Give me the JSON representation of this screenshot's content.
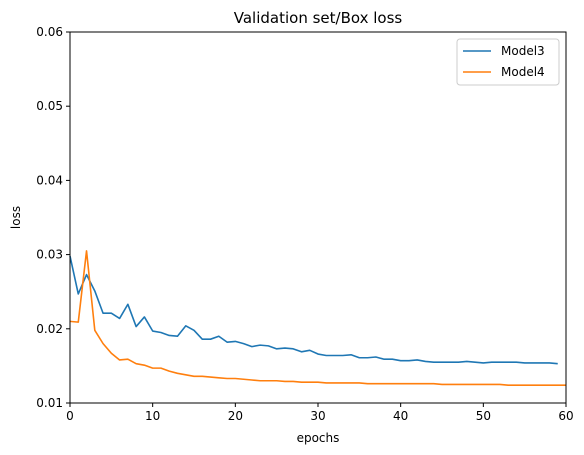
{
  "chart_data": {
    "type": "line",
    "title": "Validation set/Box loss",
    "xlabel": "epochs",
    "ylabel": "loss",
    "xlim": [
      0,
      60
    ],
    "ylim": [
      0.01,
      0.06
    ],
    "x_ticks": [
      0,
      10,
      20,
      30,
      40,
      50,
      60
    ],
    "y_ticks": [
      0.01,
      0.02,
      0.03,
      0.04,
      0.05,
      0.06
    ],
    "x_tick_labels": [
      "0",
      "10",
      "20",
      "30",
      "40",
      "50",
      "60"
    ],
    "y_tick_labels": [
      "0.01",
      "0.02",
      "0.03",
      "0.04",
      "0.05",
      "0.06"
    ],
    "grid": false,
    "legend_position": "top-right",
    "series": [
      {
        "name": "Model3",
        "color": "#1f77b4",
        "x": [
          0,
          1,
          2,
          3,
          4,
          5,
          6,
          7,
          8,
          9,
          10,
          11,
          12,
          13,
          14,
          15,
          16,
          17,
          18,
          19,
          20,
          21,
          22,
          23,
          24,
          25,
          26,
          27,
          28,
          29,
          30,
          31,
          32,
          33,
          34,
          35,
          36,
          37,
          38,
          39,
          40,
          41,
          42,
          43,
          44,
          45,
          46,
          47,
          48,
          49,
          50,
          51,
          52,
          53,
          54,
          55,
          56,
          57,
          58,
          59
        ],
        "values": [
          0.0298,
          0.0247,
          0.0273,
          0.0251,
          0.0221,
          0.0221,
          0.0214,
          0.0233,
          0.0203,
          0.0216,
          0.0197,
          0.0195,
          0.0191,
          0.019,
          0.0204,
          0.0198,
          0.0186,
          0.0186,
          0.019,
          0.0182,
          0.0183,
          0.018,
          0.0176,
          0.0178,
          0.0177,
          0.0173,
          0.0174,
          0.0173,
          0.0169,
          0.0171,
          0.0166,
          0.0164,
          0.0164,
          0.0164,
          0.0165,
          0.0161,
          0.0161,
          0.0162,
          0.0159,
          0.0159,
          0.0157,
          0.0157,
          0.0158,
          0.0156,
          0.0155,
          0.0155,
          0.0155,
          0.0155,
          0.0156,
          0.0155,
          0.0154,
          0.0155,
          0.0155,
          0.0155,
          0.0155,
          0.0154,
          0.0154,
          0.0154,
          0.0154,
          0.0153
        ]
      },
      {
        "name": "Model4",
        "color": "#ff7f0e",
        "x": [
          0,
          1,
          2,
          3,
          4,
          5,
          6,
          7,
          8,
          9,
          10,
          11,
          12,
          13,
          14,
          15,
          16,
          17,
          18,
          19,
          20,
          21,
          22,
          23,
          24,
          25,
          26,
          27,
          28,
          29,
          30,
          31,
          32,
          33,
          34,
          35,
          36,
          37,
          38,
          39,
          40,
          41,
          42,
          43,
          44,
          45,
          46,
          47,
          48,
          49,
          50,
          51,
          52,
          53,
          54,
          55,
          56,
          57,
          58,
          59,
          60
        ],
        "values": [
          0.021,
          0.0209,
          0.0305,
          0.0198,
          0.018,
          0.0167,
          0.0158,
          0.0159,
          0.0153,
          0.0151,
          0.0147,
          0.0147,
          0.0143,
          0.014,
          0.0138,
          0.0136,
          0.0136,
          0.0135,
          0.0134,
          0.0133,
          0.0133,
          0.0132,
          0.0131,
          0.013,
          0.013,
          0.013,
          0.0129,
          0.0129,
          0.0128,
          0.0128,
          0.0128,
          0.0127,
          0.0127,
          0.0127,
          0.0127,
          0.0127,
          0.0126,
          0.0126,
          0.0126,
          0.0126,
          0.0126,
          0.0126,
          0.0126,
          0.0126,
          0.0126,
          0.0125,
          0.0125,
          0.0125,
          0.0125,
          0.0125,
          0.0125,
          0.0125,
          0.0125,
          0.0124,
          0.0124,
          0.0124,
          0.0124,
          0.0124,
          0.0124,
          0.0124,
          0.0124
        ]
      }
    ]
  }
}
